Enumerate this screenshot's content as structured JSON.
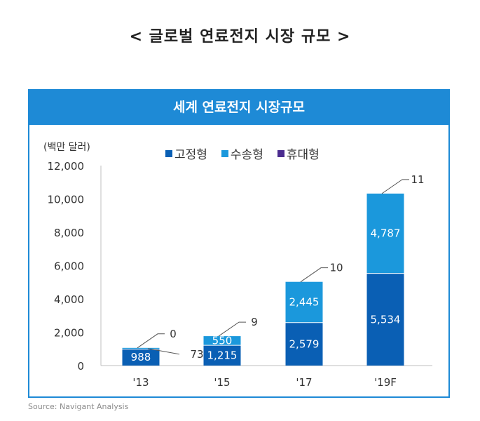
{
  "page_title": "< 글로벌 연료전지 시장 규모 >",
  "source": "Source: Navigant Analysis",
  "chart_data": {
    "type": "bar",
    "stacked": true,
    "title": "세계 연료전지 시장규모",
    "unit_label": "(백만 달러)",
    "categories": [
      "'13",
      "'15",
      "'17",
      "'19F"
    ],
    "series": [
      {
        "name": "고정형",
        "values": [
          988,
          1215,
          2579,
          5534
        ],
        "color": "#0a5fb4",
        "labels": [
          "988",
          "1,215",
          "2,579",
          "5,534"
        ]
      },
      {
        "name": "수송형",
        "values": [
          73,
          550,
          2445,
          4787
        ],
        "color": "#1b98dc",
        "labels": [
          "73",
          "550",
          "2,445",
          "4,787"
        ]
      },
      {
        "name": "휴대형",
        "values": [
          0,
          9,
          10,
          11
        ],
        "color": "#4b2c8f",
        "labels": [
          "0",
          "9",
          "10",
          "11"
        ]
      }
    ],
    "ylim": [
      0,
      12000
    ],
    "yticks": [
      0,
      2000,
      4000,
      6000,
      8000,
      10000,
      12000
    ],
    "ytick_labels": [
      "0",
      "2,000",
      "4,000",
      "6,000",
      "8,000",
      "10,000",
      "12,000"
    ],
    "legend_position": "top",
    "grid": false
  }
}
